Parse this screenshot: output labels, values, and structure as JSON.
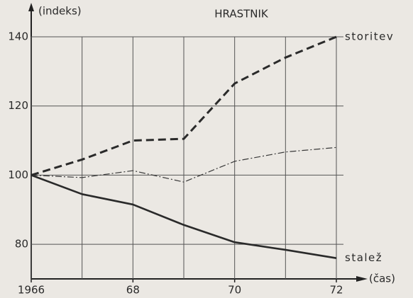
{
  "chart_data": {
    "type": "line",
    "title": "HRASTNIK",
    "y_label": "(indeks)",
    "x_label": "(čas)",
    "x": [
      1966,
      1967,
      1968,
      1969,
      1970,
      1971,
      1972
    ],
    "series": [
      {
        "name": "storitev",
        "color": "#2a2a2a",
        "line_style": "dashed",
        "values": [
          100,
          104.5,
          110,
          110.5,
          126.5,
          134,
          140
        ]
      },
      {
        "color": "#3a3a3a",
        "line_style": "dashdot",
        "values": [
          100,
          99.3,
          101.3,
          98,
          104,
          106.7,
          108
        ]
      },
      {
        "name": "stalež",
        "color": "#2a2a2a",
        "line_style": "solid",
        "values": [
          100,
          94.5,
          91.5,
          85.6,
          80.6,
          78.4,
          76
        ]
      }
    ],
    "xlim": [
      1966,
      1972
    ],
    "xticks": [
      {
        "value": 1966,
        "label": "1966"
      },
      {
        "value": 1968,
        "label": "68"
      },
      {
        "value": 1970,
        "label": "70"
      },
      {
        "value": 1972,
        "label": "72"
      }
    ],
    "ylim": [
      70,
      140
    ],
    "yticks": [
      80,
      100,
      120,
      140
    ],
    "grid": true
  }
}
